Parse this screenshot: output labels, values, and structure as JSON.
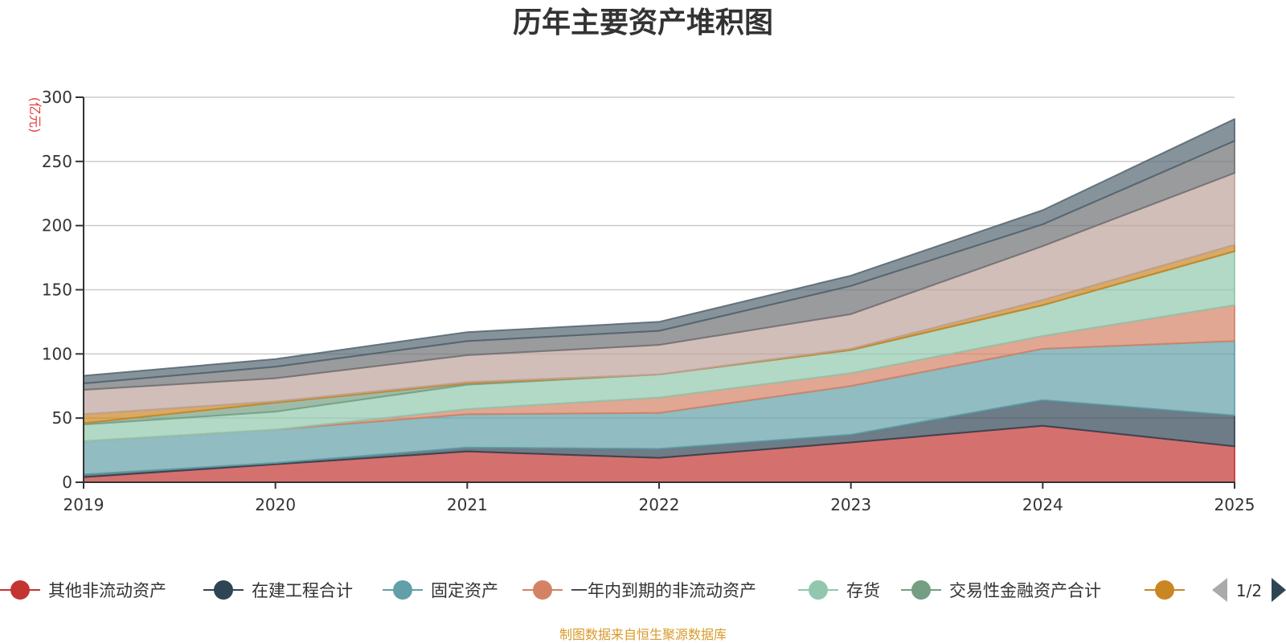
{
  "chart_data": {
    "type": "area",
    "stacked": true,
    "title": "历年主要资产堆积图",
    "unit_label": "(亿元)",
    "x": [
      "2019",
      "2020",
      "2021",
      "2022",
      "2023",
      "2024",
      "2025"
    ],
    "ylim": [
      0,
      300
    ],
    "yticks": [
      0,
      50,
      100,
      150,
      200,
      250,
      300
    ],
    "grid": true,
    "series": [
      {
        "name": "其他非流动资产",
        "color": "#c23531",
        "values": [
          4,
          14,
          24,
          19,
          31,
          44,
          28
        ]
      },
      {
        "name": "在建工程合计",
        "color": "#2f4554",
        "values": [
          2,
          1,
          3,
          7,
          6,
          20,
          24
        ]
      },
      {
        "name": "固定资产",
        "color": "#61a0a8",
        "values": [
          26,
          26,
          26,
          28,
          38,
          40,
          58
        ]
      },
      {
        "name": "一年内到期的非流动资产",
        "color": "#d48265",
        "values": [
          0,
          0,
          4,
          12,
          10,
          10,
          28
        ]
      },
      {
        "name": "存货",
        "color": "#91c7ae",
        "values": [
          13,
          14,
          19,
          18,
          18,
          24,
          42
        ]
      },
      {
        "name": "交易性金融资产合计",
        "color": "#749f83",
        "values": [
          1,
          7,
          1,
          0,
          0,
          0,
          0
        ]
      },
      {
        "name": "",
        "color": "#ca8622",
        "values": [
          7,
          1,
          1,
          0,
          1,
          4,
          5
        ]
      },
      {
        "name": "",
        "color": "#bda29a",
        "values": [
          19,
          18,
          21,
          23,
          27,
          42,
          56
        ]
      },
      {
        "name": "",
        "color": "#6e7074",
        "values": [
          5,
          9,
          11,
          11,
          22,
          17,
          25
        ]
      },
      {
        "name": "",
        "color": "#546570",
        "values": [
          6,
          6,
          7,
          7,
          8,
          11,
          17
        ]
      }
    ],
    "legend": {
      "visible_items": [
        "其他非流动资产",
        "在建工程合计",
        "固定资产",
        "一年内到期的非流动资产",
        "存货",
        "交易性金融资产合计"
      ],
      "truncated_item_color": "#ca8622",
      "page": "1/2"
    },
    "source_note": "制图数据来自恒生聚源数据库"
  }
}
